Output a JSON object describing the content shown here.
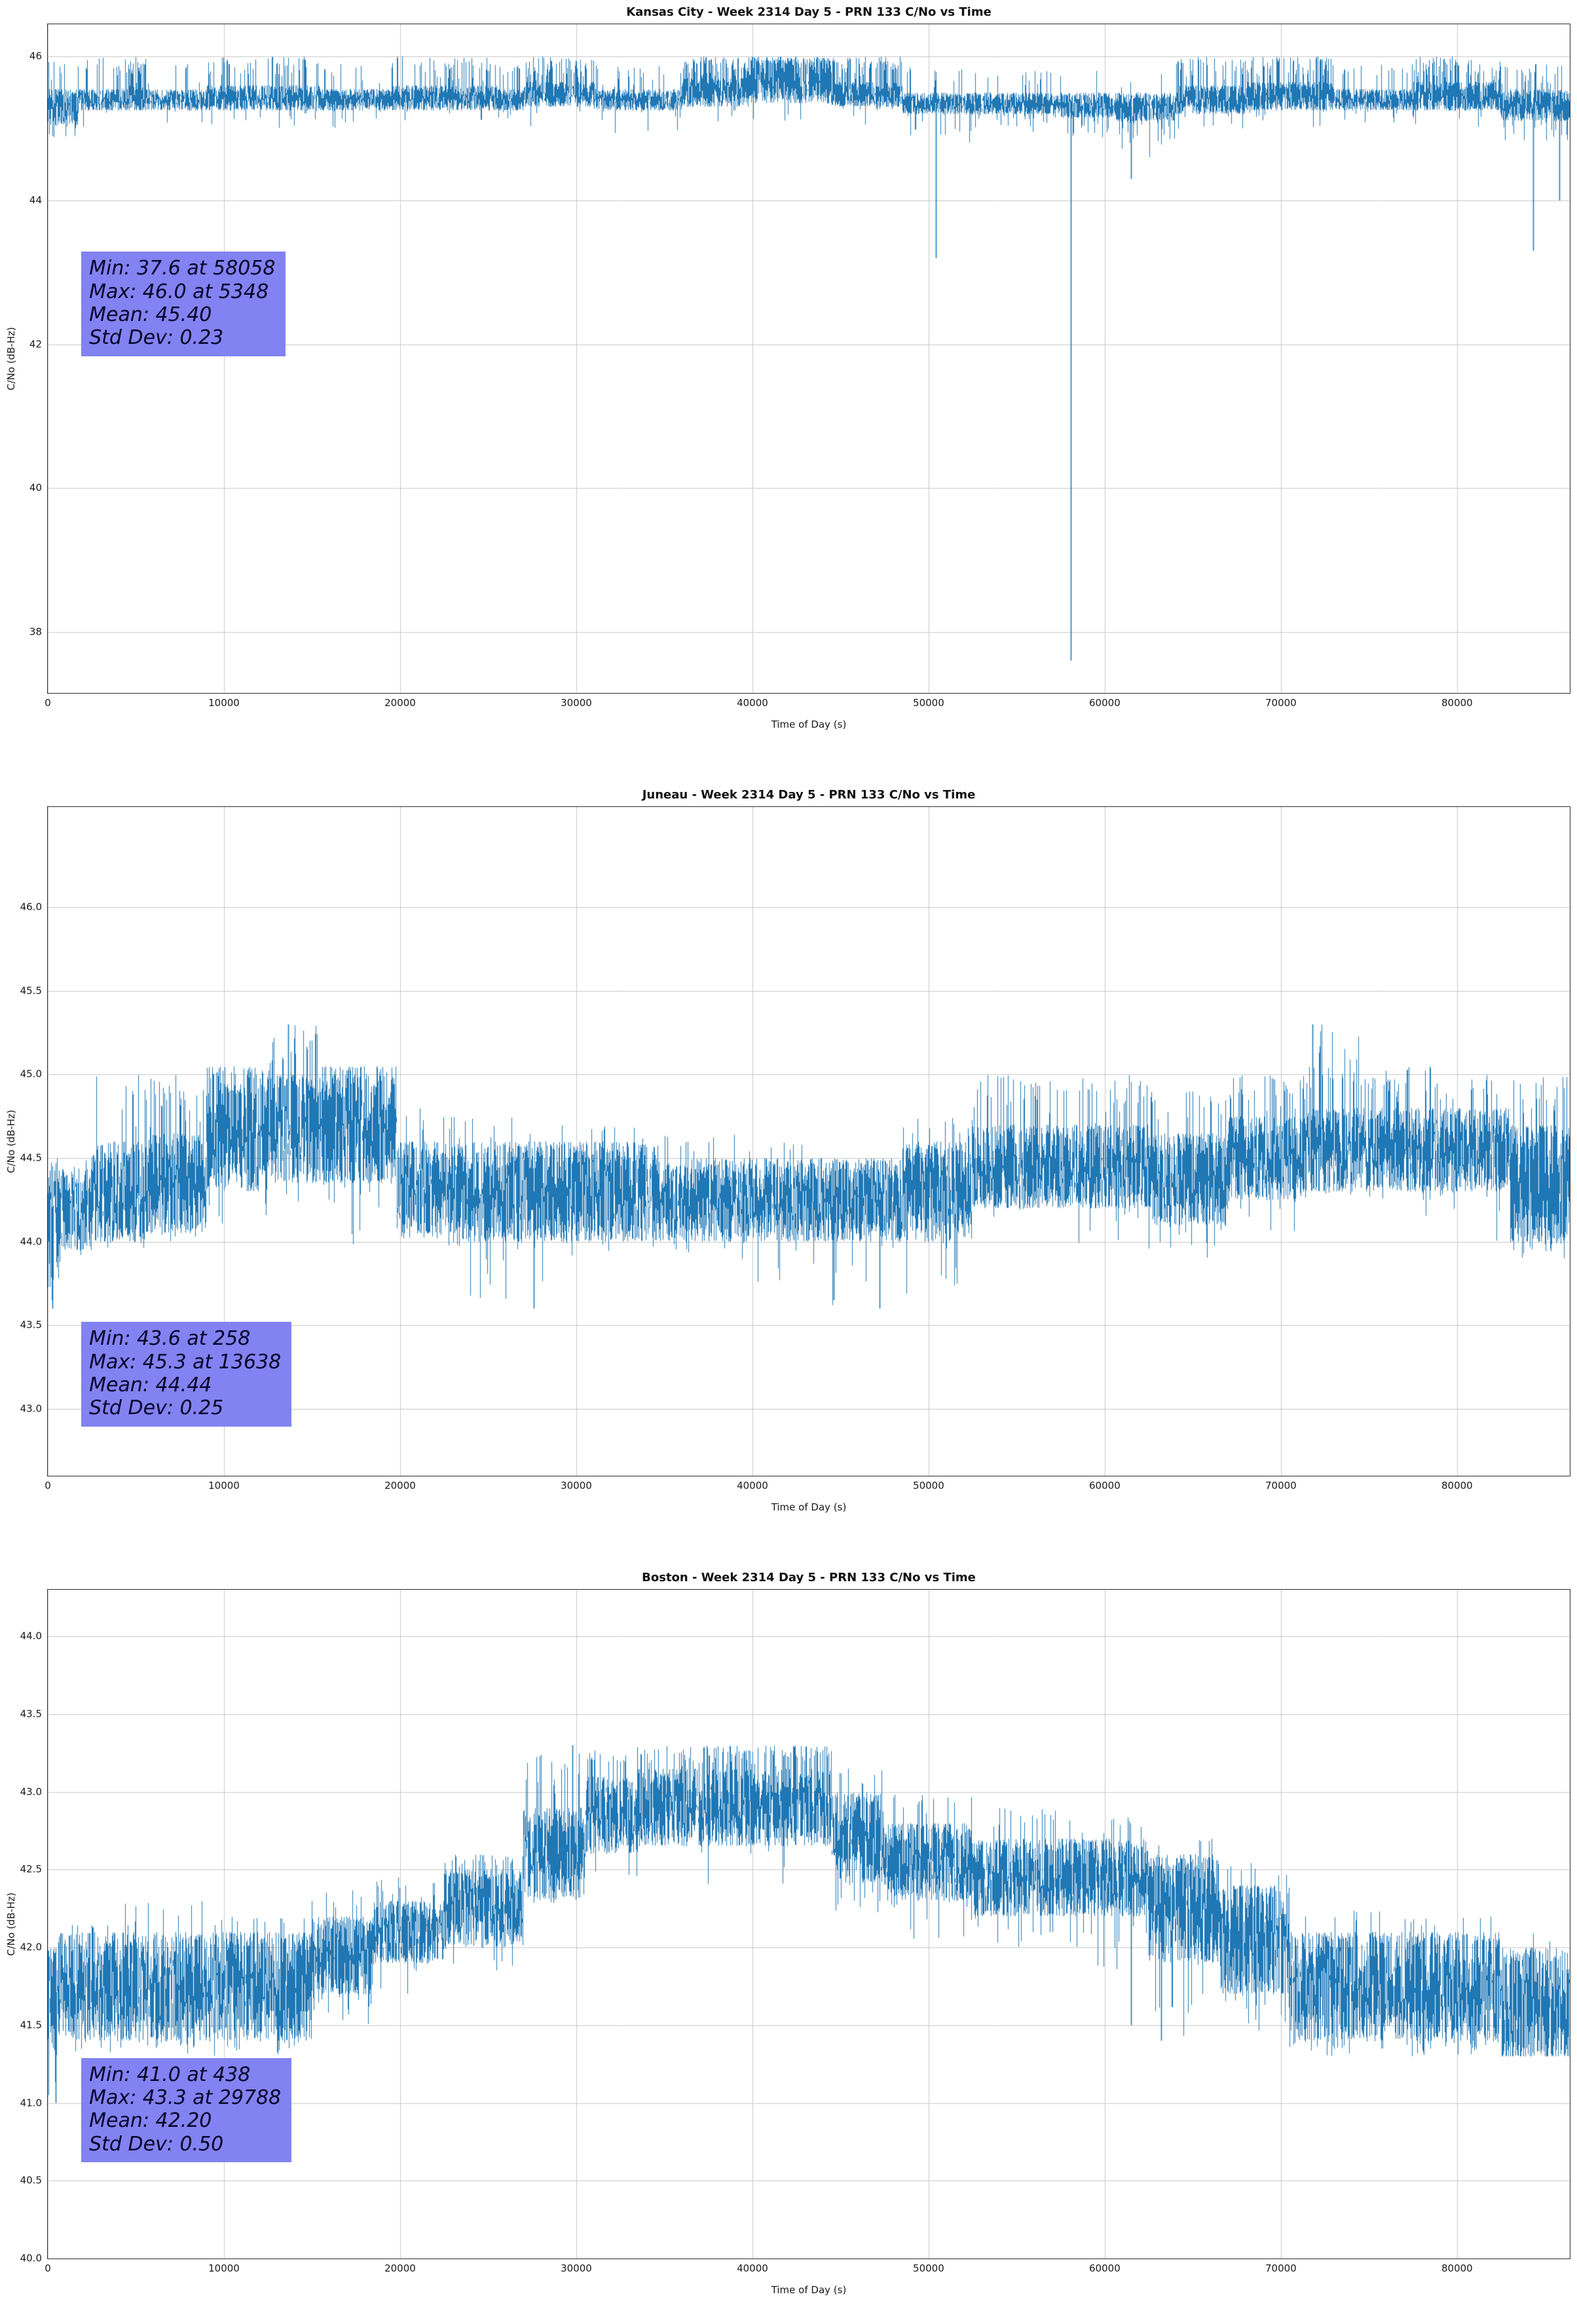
{
  "figure": {
    "background_color": "#ffffff",
    "num_subplots": 3
  },
  "chart_data": [
    {
      "type": "line",
      "title": "Kansas City - Week 2314 Day 5 - PRN 133 C/No vs Time",
      "xlabel": "Time of Day (s)",
      "ylabel": "C/No (dB-Hz)",
      "xlim": [
        0,
        86400
      ],
      "ylim": [
        37.15,
        46.45
      ],
      "grid": true,
      "legend": "none",
      "line_color": "#1f77b4",
      "grid_color": "#c7c7c7",
      "seed": 7,
      "xticks": {
        "values": [
          0,
          10000,
          20000,
          30000,
          40000,
          50000,
          60000,
          70000,
          80000
        ],
        "labels": [
          "0",
          "10000",
          "20000",
          "30000",
          "40000",
          "50000",
          "60000",
          "70000",
          "80000"
        ]
      },
      "yticks": {
        "values": [
          38,
          40,
          42,
          44,
          46
        ],
        "labels": [
          "38",
          "40",
          "42",
          "44",
          "46"
        ]
      },
      "stats_box": {
        "lines": [
          "Min: 37.6 at 58058",
          "Max: 46.0 at 5348",
          "Mean: 45.40",
          "Std Dev: 0.23"
        ],
        "min": 37.6,
        "min_time": 58058,
        "max": 46.0,
        "max_time": 5348,
        "mean": 45.4,
        "std_dev": 0.23,
        "bg_color": "#8282f2",
        "pos": {
          "left": 0.022,
          "top": 0.34
        }
      },
      "series": {
        "name": "C/No",
        "envelope_segments": [
          [
            0,
            1800,
            45.05,
            45.55,
            0.15,
            45.95,
            0.25,
            44.85
          ],
          [
            1800,
            4600,
            45.25,
            45.55,
            0.12,
            46.0,
            0.06,
            45.0
          ],
          [
            4600,
            5600,
            45.25,
            45.6,
            0.5,
            46.0,
            0.05,
            45.0
          ],
          [
            5600,
            9000,
            45.25,
            45.55,
            0.08,
            45.9,
            0.06,
            45.0
          ],
          [
            9000,
            15500,
            45.25,
            45.6,
            0.25,
            46.0,
            0.06,
            45.0
          ],
          [
            15500,
            19500,
            45.25,
            45.55,
            0.1,
            45.9,
            0.05,
            45.0
          ],
          [
            19500,
            25500,
            45.25,
            45.6,
            0.3,
            46.0,
            0.06,
            45.0
          ],
          [
            25500,
            27000,
            45.25,
            45.55,
            0.1,
            45.9,
            0.05,
            45.0
          ],
          [
            27000,
            31000,
            45.3,
            45.65,
            0.45,
            46.0,
            0.04,
            45.0
          ],
          [
            31000,
            36000,
            45.25,
            45.55,
            0.15,
            45.9,
            0.06,
            44.9
          ],
          [
            36000,
            39500,
            45.3,
            45.7,
            0.5,
            46.0,
            0.04,
            45.0
          ],
          [
            39500,
            44500,
            45.35,
            45.85,
            0.7,
            46.0,
            0.03,
            45.1
          ],
          [
            44500,
            48500,
            45.3,
            45.65,
            0.45,
            46.0,
            0.05,
            45.0
          ],
          [
            48500,
            52500,
            45.2,
            45.5,
            0.1,
            45.85,
            0.15,
            44.8
          ],
          [
            52500,
            57500,
            45.2,
            45.5,
            0.08,
            45.8,
            0.2,
            44.95
          ],
          [
            57500,
            60500,
            45.15,
            45.5,
            0.05,
            45.8,
            0.2,
            44.8
          ],
          [
            60500,
            64000,
            45.1,
            45.5,
            0.05,
            45.8,
            0.15,
            44.6
          ],
          [
            64000,
            68000,
            45.2,
            45.6,
            0.3,
            46.0,
            0.1,
            44.9
          ],
          [
            68000,
            73000,
            45.25,
            45.65,
            0.4,
            46.0,
            0.06,
            45.0
          ],
          [
            73000,
            77500,
            45.25,
            45.55,
            0.12,
            45.9,
            0.08,
            45.0
          ],
          [
            77500,
            82500,
            45.25,
            45.65,
            0.4,
            46.0,
            0.06,
            45.0
          ],
          [
            82500,
            86400,
            45.1,
            45.55,
            0.15,
            45.9,
            0.15,
            44.8
          ]
        ],
        "events": [
          [
            50400,
            43.2
          ],
          [
            58058,
            37.6
          ],
          [
            61500,
            44.3
          ],
          [
            84300,
            43.3
          ],
          [
            85800,
            44.0
          ]
        ]
      }
    },
    {
      "type": "line",
      "title": "Juneau - Week 2314 Day 5 - PRN 133 C/No vs Time",
      "xlabel": "Time of Day (s)",
      "ylabel": "C/No (dB-Hz)",
      "xlim": [
        0,
        86400
      ],
      "ylim": [
        42.6,
        46.6
      ],
      "grid": true,
      "legend": "none",
      "line_color": "#1f77b4",
      "grid_color": "#c7c7c7",
      "seed": 21,
      "xticks": {
        "values": [
          0,
          10000,
          20000,
          30000,
          40000,
          50000,
          60000,
          70000,
          80000
        ],
        "labels": [
          "0",
          "10000",
          "20000",
          "30000",
          "40000",
          "50000",
          "60000",
          "70000",
          "80000"
        ]
      },
      "yticks": {
        "values": [
          43.0,
          43.5,
          44.0,
          44.5,
          45.0,
          45.5,
          46.0
        ],
        "labels": [
          "43.0",
          "43.5",
          "44.0",
          "44.5",
          "45.0",
          "45.5",
          "46.0"
        ]
      },
      "stats_box": {
        "lines": [
          "Min: 43.6 at 258",
          "Max: 45.3 at 13638",
          "Mean: 44.44",
          "Std Dev: 0.25"
        ],
        "min": 43.6,
        "min_time": 258,
        "max": 45.3,
        "max_time": 13638,
        "mean": 44.44,
        "std_dev": 0.25,
        "bg_color": "#8282f2",
        "pos": {
          "left": 0.022,
          "top": 0.77
        }
      },
      "series": {
        "name": "C/No",
        "envelope_segments": [
          [
            0,
            700,
            43.9,
            44.5,
            0.02,
            44.6,
            0.3,
            43.6
          ],
          [
            700,
            2500,
            43.95,
            44.45,
            0.05,
            44.6,
            0.1,
            43.9
          ],
          [
            2500,
            5500,
            44.0,
            44.6,
            0.12,
            45.0,
            0.05,
            43.95
          ],
          [
            5500,
            9000,
            44.05,
            44.65,
            0.22,
            45.0,
            0.04,
            44.0
          ],
          [
            9000,
            12500,
            44.3,
            44.95,
            0.3,
            45.05,
            0.05,
            44.1
          ],
          [
            12500,
            15500,
            44.35,
            45.0,
            0.25,
            45.3,
            0.04,
            44.2
          ],
          [
            15500,
            19800,
            44.35,
            45.0,
            0.28,
            45.05,
            0.07,
            43.95
          ],
          [
            19800,
            23500,
            44.05,
            44.6,
            0.06,
            44.8,
            0.1,
            43.95
          ],
          [
            23500,
            28500,
            44.0,
            44.6,
            0.04,
            44.75,
            0.06,
            43.6
          ],
          [
            28500,
            34500,
            44.0,
            44.6,
            0.05,
            44.7,
            0.05,
            43.9
          ],
          [
            34500,
            39000,
            44.0,
            44.5,
            0.04,
            44.65,
            0.05,
            43.9
          ],
          [
            39000,
            44000,
            44.0,
            44.5,
            0.04,
            44.6,
            0.05,
            43.7
          ],
          [
            44000,
            48500,
            44.0,
            44.5,
            0.04,
            44.6,
            0.06,
            43.6
          ],
          [
            48500,
            52500,
            44.0,
            44.6,
            0.06,
            44.75,
            0.05,
            43.65
          ],
          [
            52500,
            58500,
            44.2,
            44.7,
            0.15,
            45.0,
            0.05,
            44.0
          ],
          [
            58500,
            62500,
            44.2,
            44.7,
            0.2,
            45.0,
            0.07,
            43.9
          ],
          [
            62500,
            67000,
            44.1,
            44.65,
            0.1,
            44.9,
            0.09,
            43.9
          ],
          [
            67000,
            71500,
            44.25,
            44.75,
            0.2,
            45.0,
            0.05,
            44.05
          ],
          [
            71500,
            74500,
            44.3,
            44.8,
            0.18,
            45.3,
            0.04,
            44.1
          ],
          [
            74500,
            79000,
            44.3,
            44.8,
            0.25,
            45.05,
            0.04,
            44.1
          ],
          [
            79000,
            83000,
            44.3,
            44.8,
            0.2,
            45.0,
            0.05,
            44.0
          ],
          [
            83000,
            86400,
            44.0,
            44.7,
            0.15,
            45.0,
            0.12,
            43.9
          ]
        ],
        "events": [
          [
            258,
            43.6
          ],
          [
            13638,
            45.3
          ],
          [
            27600,
            43.6
          ],
          [
            44600,
            43.65
          ],
          [
            47200,
            43.6
          ],
          [
            71800,
            45.3
          ]
        ]
      }
    },
    {
      "type": "line",
      "title": "Boston - Week 2314 Day 5 - PRN 133 C/No vs Time",
      "xlabel": "Time of Day (s)",
      "ylabel": "C/No (dB-Hz)",
      "xlim": [
        0,
        86400
      ],
      "ylim": [
        40.0,
        44.3
      ],
      "grid": true,
      "legend": "none",
      "line_color": "#1f77b4",
      "grid_color": "#c7c7c7",
      "seed": 33,
      "xticks": {
        "values": [
          0,
          10000,
          20000,
          30000,
          40000,
          50000,
          60000,
          70000,
          80000
        ],
        "labels": [
          "0",
          "10000",
          "20000",
          "30000",
          "40000",
          "50000",
          "60000",
          "70000",
          "80000"
        ]
      },
      "yticks": {
        "values": [
          40.0,
          40.5,
          41.0,
          41.5,
          42.0,
          42.5,
          43.0,
          43.5,
          44.0
        ],
        "labels": [
          "40.0",
          "40.5",
          "41.0",
          "41.5",
          "42.0",
          "42.5",
          "43.0",
          "43.5",
          "44.0"
        ]
      },
      "stats_box": {
        "lines": [
          "Min: 41.0 at 438",
          "Max: 43.3 at 29788",
          "Mean: 42.20",
          "Std Dev: 0.50"
        ],
        "min": 41.0,
        "min_time": 438,
        "max": 43.3,
        "max_time": 29788,
        "mean": 42.2,
        "std_dev": 0.5,
        "bg_color": "#8282f2",
        "pos": {
          "left": 0.022,
          "top": 0.7
        }
      },
      "series": {
        "name": "C/No",
        "envelope_segments": [
          [
            0,
            600,
            41.3,
            42.0,
            0.05,
            42.1,
            0.3,
            41.0
          ],
          [
            600,
            4000,
            41.4,
            42.1,
            0.05,
            42.15,
            0.12,
            41.3
          ],
          [
            4000,
            9000,
            41.4,
            42.1,
            0.06,
            42.3,
            0.1,
            41.3
          ],
          [
            9000,
            15000,
            41.4,
            42.1,
            0.05,
            42.2,
            0.1,
            41.3
          ],
          [
            15000,
            18500,
            41.7,
            42.2,
            0.1,
            42.4,
            0.08,
            41.5
          ],
          [
            18500,
            22500,
            41.9,
            42.3,
            0.15,
            42.45,
            0.06,
            41.6
          ],
          [
            22500,
            27000,
            42.0,
            42.5,
            0.2,
            42.6,
            0.05,
            41.8
          ],
          [
            27000,
            30500,
            42.3,
            42.9,
            0.15,
            43.3,
            0.05,
            42.1
          ],
          [
            30500,
            33500,
            42.6,
            43.1,
            0.2,
            43.3,
            0.06,
            42.35
          ],
          [
            33500,
            38500,
            42.65,
            43.15,
            0.25,
            43.3,
            0.05,
            42.4
          ],
          [
            38500,
            44500,
            42.65,
            43.15,
            0.3,
            43.3,
            0.08,
            42.4
          ],
          [
            44500,
            47500,
            42.4,
            43.0,
            0.1,
            43.15,
            0.1,
            42.2
          ],
          [
            47500,
            52500,
            42.3,
            42.8,
            0.08,
            43.0,
            0.08,
            42.0
          ],
          [
            52500,
            57500,
            42.2,
            42.7,
            0.1,
            42.9,
            0.07,
            42.0
          ],
          [
            57500,
            62500,
            42.2,
            42.7,
            0.06,
            42.85,
            0.08,
            41.8
          ],
          [
            62500,
            66500,
            41.9,
            42.6,
            0.05,
            42.7,
            0.08,
            41.4
          ],
          [
            66500,
            70500,
            41.7,
            42.4,
            0.05,
            42.55,
            0.1,
            41.4
          ],
          [
            70500,
            76500,
            41.4,
            42.1,
            0.05,
            42.25,
            0.15,
            41.3
          ],
          [
            76500,
            82500,
            41.4,
            42.1,
            0.06,
            42.2,
            0.15,
            41.3
          ],
          [
            82500,
            86400,
            41.3,
            42.0,
            0.05,
            42.1,
            0.2,
            41.3
          ]
        ],
        "events": [
          [
            438,
            41.0
          ],
          [
            29788,
            43.3
          ],
          [
            61500,
            41.5
          ],
          [
            63200,
            41.4
          ]
        ]
      }
    }
  ]
}
